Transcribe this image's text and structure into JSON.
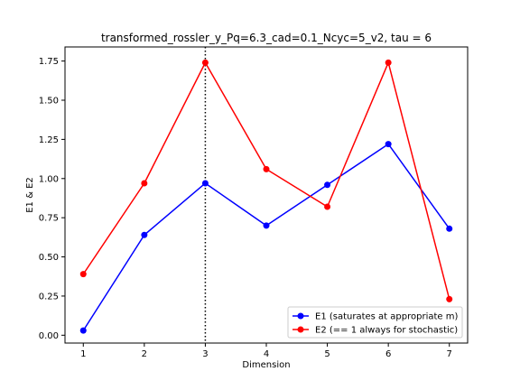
{
  "chart_data": {
    "type": "line",
    "title": "transformed_rossler_y_Pq=6.3_cad=0.1_Ncyc=5_v2, tau = 6",
    "xlabel": "Dimension",
    "ylabel": "E1 & E2",
    "x": [
      1,
      2,
      3,
      4,
      5,
      6,
      7
    ],
    "xlim": [
      0.7,
      7.3
    ],
    "ylim": [
      -0.05,
      1.84
    ],
    "xticks": [
      1,
      2,
      3,
      4,
      5,
      6,
      7
    ],
    "yticks": [
      0.0,
      0.25,
      0.5,
      0.75,
      1.0,
      1.25,
      1.5,
      1.75
    ],
    "ytick_labels": [
      "0.00",
      "0.25",
      "0.50",
      "0.75",
      "1.00",
      "1.25",
      "1.50",
      "1.75"
    ],
    "series": [
      {
        "name": "E1 (saturates at appropriate m)",
        "color": "#0000ff",
        "marker": "circle",
        "values": [
          0.03,
          0.64,
          0.97,
          0.7,
          0.96,
          1.22,
          0.68
        ]
      },
      {
        "name": "E2 (== 1 always for stochastic)",
        "color": "#ff0000",
        "marker": "circle",
        "values": [
          0.39,
          0.97,
          1.74,
          1.06,
          0.82,
          1.74,
          0.23
        ]
      }
    ],
    "vline": {
      "x": 3,
      "style": "dotted",
      "color": "#000000"
    },
    "legend": {
      "position": "lower-right"
    },
    "grid": false
  }
}
